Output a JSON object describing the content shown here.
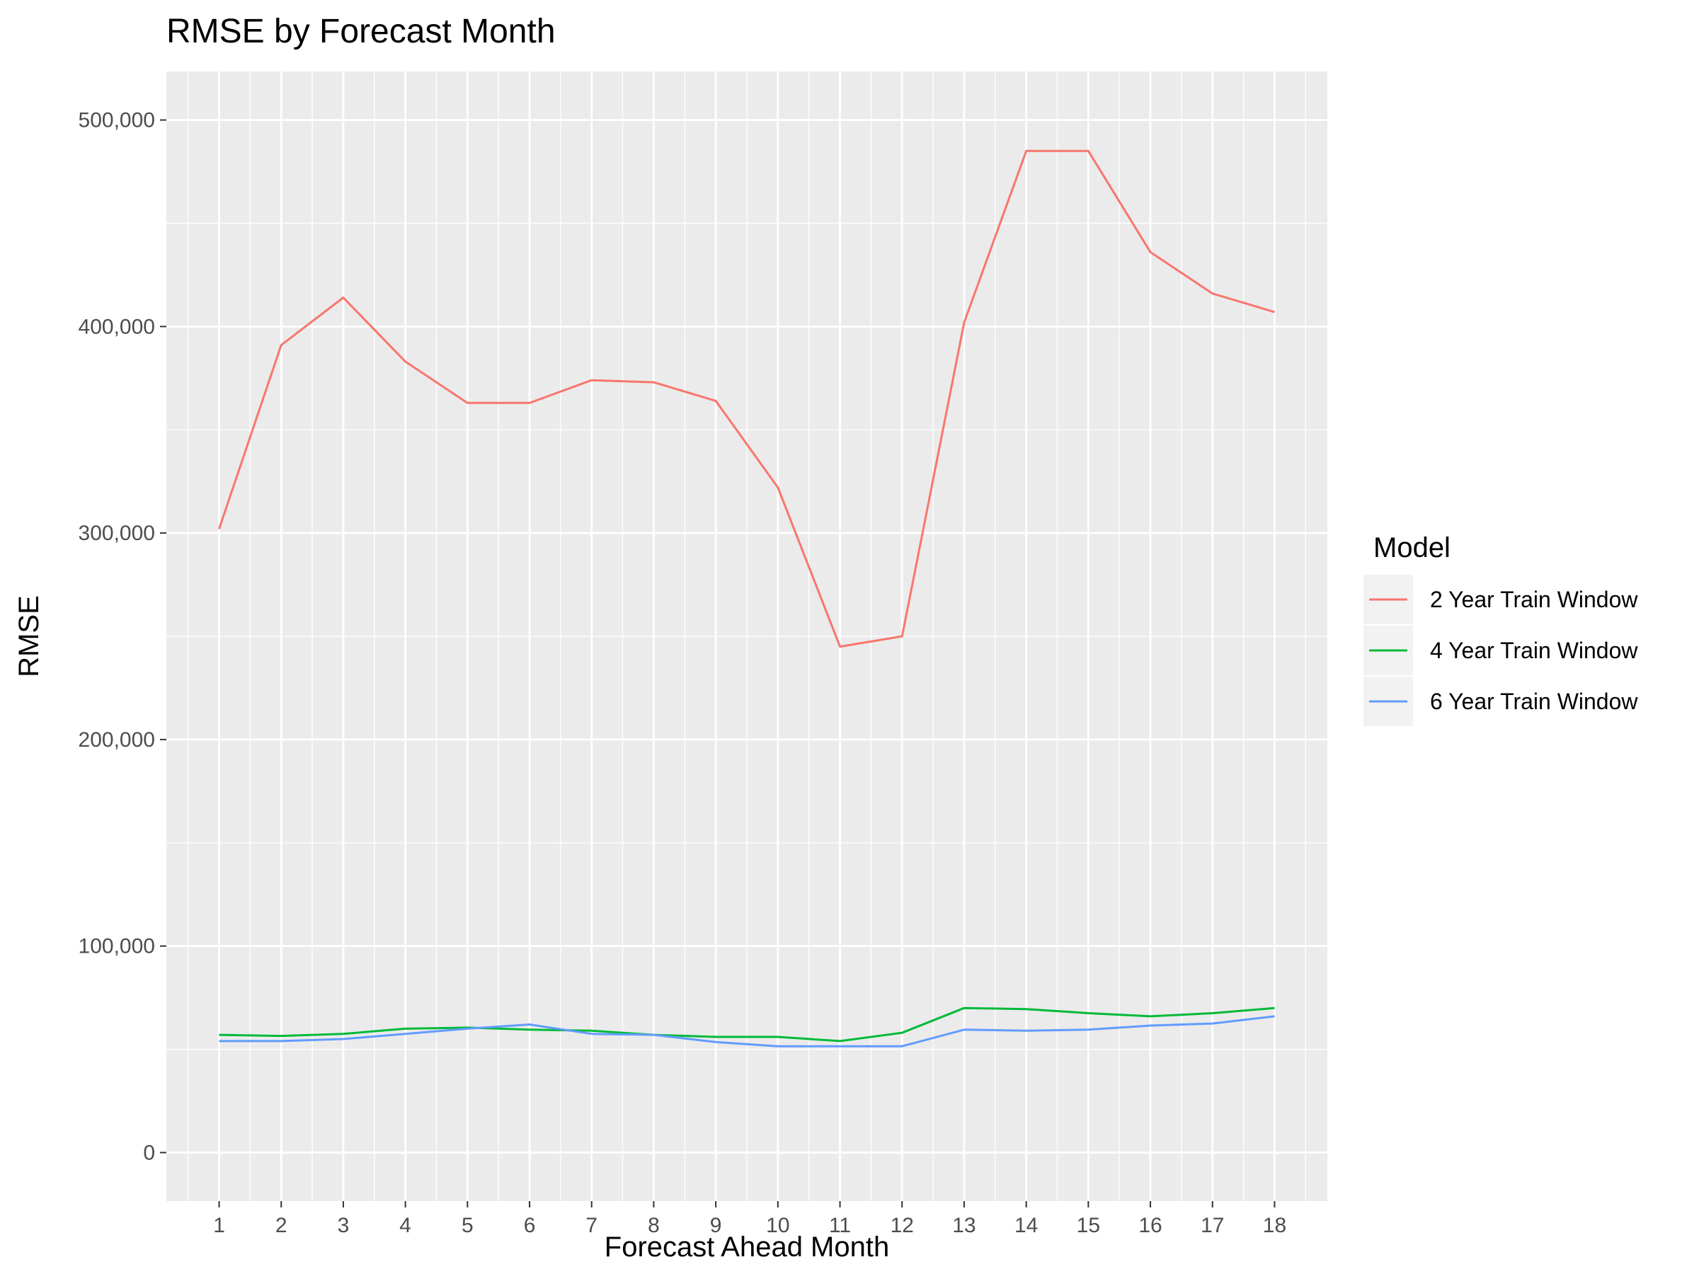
{
  "chart_data": {
    "type": "line",
    "title": "RMSE by Forecast Month",
    "xlabel": "Forecast Ahead Month",
    "ylabel": "RMSE",
    "x": [
      1,
      2,
      3,
      4,
      5,
      6,
      7,
      8,
      9,
      10,
      11,
      12,
      13,
      14,
      15,
      16,
      17,
      18
    ],
    "xlim": [
      0.15,
      18.85
    ],
    "ylim": [
      -23500,
      523500
    ],
    "y_ticks": [
      0,
      100000,
      200000,
      300000,
      400000,
      500000
    ],
    "y_tick_labels": [
      "0",
      "100,000",
      "200,000",
      "300,000",
      "400,000",
      "500,000"
    ],
    "grid": true,
    "legend_position": "right",
    "legend_title": "Model",
    "series": [
      {
        "name": "2 Year Train Window",
        "color": "#F8766D",
        "values": [
          302000,
          391000,
          414000,
          383000,
          363000,
          363000,
          374000,
          373000,
          364000,
          322000,
          245000,
          250000,
          402000,
          485000,
          485000,
          436000,
          416000,
          407000
        ]
      },
      {
        "name": "4 Year Train Window",
        "color": "#00BA38",
        "values": [
          57000,
          56500,
          57500,
          60000,
          60500,
          59500,
          59000,
          57000,
          56000,
          56000,
          54000,
          58000,
          70000,
          69500,
          67500,
          66000,
          67500,
          70000
        ]
      },
      {
        "name": "6 Year Train Window",
        "color": "#619CFF",
        "values": [
          54000,
          54000,
          55000,
          57500,
          60000,
          62000,
          57500,
          57000,
          53500,
          51500,
          51500,
          51500,
          59500,
          59000,
          59500,
          61500,
          62500,
          66000
        ]
      }
    ]
  }
}
